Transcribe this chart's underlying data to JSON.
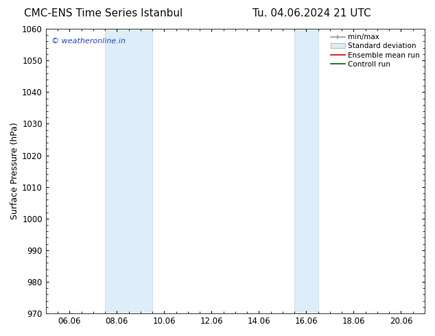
{
  "title_left": "CMC-ENS Time Series Istanbul",
  "title_right": "Tu. 04.06.2024 21 UTC",
  "ylabel": "Surface Pressure (hPa)",
  "ylim": [
    970,
    1060
  ],
  "yticks": [
    970,
    980,
    990,
    1000,
    1010,
    1020,
    1030,
    1040,
    1050,
    1060
  ],
  "x_tick_labels": [
    "06.06",
    "08.06",
    "10.06",
    "12.06",
    "14.06",
    "16.06",
    "18.06",
    "20.06"
  ],
  "x_tick_positions": [
    33,
    81,
    129,
    177,
    225,
    273,
    321,
    369
  ],
  "xlim": [
    9,
    393
  ],
  "shaded_bands": [
    {
      "x_start": 69,
      "x_end": 117
    },
    {
      "x_start": 261,
      "x_end": 285
    }
  ],
  "shade_color": "#ddeef8",
  "shade_edge_color": "#c0d8ec",
  "background_color": "#ffffff",
  "watermark_text": "© weatheronline.in",
  "watermark_color": "#2244cc",
  "title_fontsize": 11,
  "axis_label_fontsize": 9,
  "tick_fontsize": 8.5,
  "legend_fontsize": 7.5
}
